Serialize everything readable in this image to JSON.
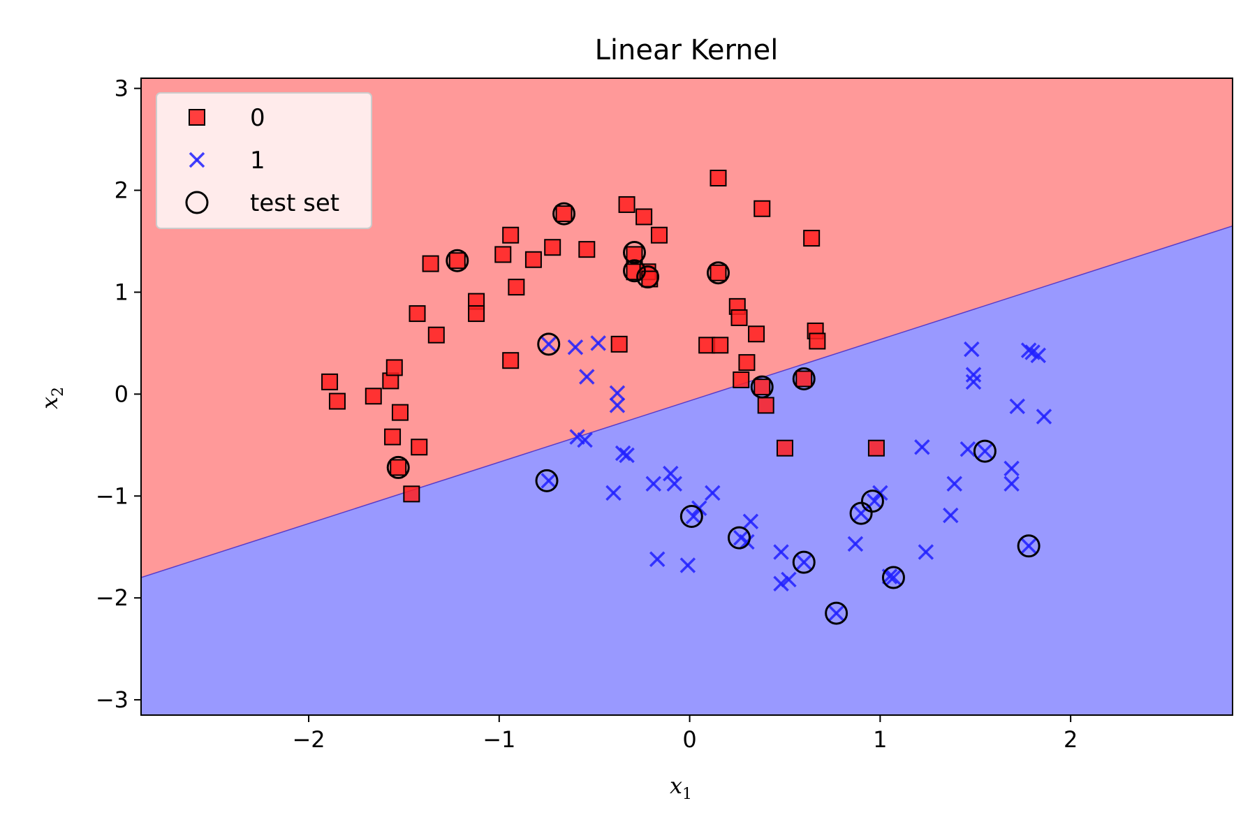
{
  "chart_data": {
    "type": "scatter",
    "title": "Linear Kernel",
    "xlabel": "x",
    "xlabel_sub": "1",
    "ylabel": "x",
    "ylabel_sub": "2",
    "xlim": [
      -2.88,
      2.85
    ],
    "ylim": [
      -3.15,
      3.1
    ],
    "xticks": [
      -2,
      -1,
      0,
      1,
      2
    ],
    "yticks": [
      -3,
      -2,
      -1,
      0,
      1,
      2,
      3
    ],
    "xtick_labels": [
      "−2",
      "−1",
      "0",
      "1",
      "2"
    ],
    "ytick_labels": [
      "−3",
      "−2",
      "−1",
      "0",
      "1",
      "2",
      "3"
    ],
    "grid": false,
    "legend_position": "top-left",
    "decision_boundary": {
      "x": [
        -2.88,
        2.85
      ],
      "y": [
        -1.8,
        1.65
      ]
    },
    "region_colors": {
      "class_0": "#ff9999",
      "class_1": "#9999ff"
    },
    "series": [
      {
        "name": "0",
        "marker": "square",
        "color": "#ff2020",
        "points": [
          [
            -1.89,
            0.12
          ],
          [
            -1.85,
            -0.07
          ],
          [
            -1.66,
            -0.02
          ],
          [
            -1.57,
            0.13
          ],
          [
            -1.55,
            0.26
          ],
          [
            -1.56,
            -0.42
          ],
          [
            -1.52,
            -0.18
          ],
          [
            -1.53,
            -0.72
          ],
          [
            -1.46,
            -0.98
          ],
          [
            -1.42,
            -0.52
          ],
          [
            -1.43,
            0.79
          ],
          [
            -1.36,
            1.28
          ],
          [
            -1.33,
            0.58
          ],
          [
            -1.22,
            1.31
          ],
          [
            -1.12,
            0.91
          ],
          [
            -1.12,
            0.79
          ],
          [
            -0.98,
            1.37
          ],
          [
            -0.94,
            1.56
          ],
          [
            -0.94,
            0.33
          ],
          [
            -0.91,
            1.05
          ],
          [
            -0.82,
            1.32
          ],
          [
            -0.72,
            1.44
          ],
          [
            -0.66,
            1.77
          ],
          [
            -0.54,
            1.42
          ],
          [
            -0.37,
            0.49
          ],
          [
            -0.33,
            1.86
          ],
          [
            -0.29,
            1.37
          ],
          [
            -0.29,
            1.2
          ],
          [
            -0.24,
            1.74
          ],
          [
            -0.22,
            1.2
          ],
          [
            -0.21,
            1.13
          ],
          [
            -0.16,
            1.56
          ],
          [
            0.09,
            0.48
          ],
          [
            0.15,
            2.12
          ],
          [
            0.16,
            0.48
          ],
          [
            0.15,
            1.19
          ],
          [
            0.25,
            0.86
          ],
          [
            0.26,
            0.75
          ],
          [
            0.27,
            0.14
          ],
          [
            0.3,
            0.31
          ],
          [
            0.35,
            0.59
          ],
          [
            0.38,
            0.07
          ],
          [
            0.4,
            -0.11
          ],
          [
            0.38,
            1.82
          ],
          [
            0.5,
            -0.53
          ],
          [
            0.6,
            0.15
          ],
          [
            0.64,
            1.53
          ],
          [
            0.66,
            0.62
          ],
          [
            0.67,
            0.52
          ],
          [
            0.98,
            -0.53
          ]
        ]
      },
      {
        "name": "1",
        "marker": "x",
        "color": "#2020ff",
        "points": [
          [
            -0.74,
            0.49
          ],
          [
            -0.6,
            0.46
          ],
          [
            -0.48,
            0.5
          ],
          [
            -0.54,
            0.17
          ],
          [
            -0.38,
            0.01
          ],
          [
            -0.38,
            -0.11
          ],
          [
            -0.59,
            -0.42
          ],
          [
            -0.55,
            -0.45
          ],
          [
            -0.35,
            -0.58
          ],
          [
            -0.33,
            -0.6
          ],
          [
            -0.74,
            -0.85
          ],
          [
            -0.4,
            -0.97
          ],
          [
            -0.19,
            -0.88
          ],
          [
            -0.1,
            -0.78
          ],
          [
            -0.08,
            -0.88
          ],
          [
            -0.17,
            -1.62
          ],
          [
            -0.01,
            -1.68
          ],
          [
            0.02,
            -1.2
          ],
          [
            0.05,
            -1.12
          ],
          [
            0.12,
            -0.97
          ],
          [
            0.27,
            -1.41
          ],
          [
            0.3,
            -1.45
          ],
          [
            0.32,
            -1.25
          ],
          [
            0.48,
            -1.55
          ],
          [
            0.48,
            -1.86
          ],
          [
            0.52,
            -1.82
          ],
          [
            0.6,
            -1.65
          ],
          [
            0.77,
            -2.15
          ],
          [
            0.87,
            -1.47
          ],
          [
            0.9,
            -1.17
          ],
          [
            0.97,
            -1.05
          ],
          [
            1.0,
            -0.97
          ],
          [
            1.05,
            -1.79
          ],
          [
            1.07,
            -1.8
          ],
          [
            1.22,
            -0.52
          ],
          [
            1.24,
            -1.55
          ],
          [
            1.37,
            -1.19
          ],
          [
            1.39,
            -0.88
          ],
          [
            1.46,
            -0.54
          ],
          [
            1.48,
            0.44
          ],
          [
            1.49,
            0.19
          ],
          [
            1.49,
            0.12
          ],
          [
            1.55,
            -0.56
          ],
          [
            1.69,
            -0.73
          ],
          [
            1.69,
            -0.88
          ],
          [
            1.72,
            -0.12
          ],
          [
            1.78,
            0.43
          ],
          [
            1.8,
            0.41
          ],
          [
            1.83,
            0.38
          ],
          [
            1.86,
            -0.22
          ],
          [
            1.78,
            -1.49
          ]
        ]
      },
      {
        "name": "test set",
        "marker": "circle-open",
        "color": "#000000",
        "points": [
          [
            -1.53,
            -0.72
          ],
          [
            -1.22,
            1.31
          ],
          [
            -0.66,
            1.77
          ],
          [
            -0.29,
            1.39
          ],
          [
            -0.29,
            1.21
          ],
          [
            -0.22,
            1.15
          ],
          [
            0.15,
            1.19
          ],
          [
            0.38,
            0.07
          ],
          [
            0.6,
            0.15
          ],
          [
            -0.74,
            0.49
          ],
          [
            -0.75,
            -0.85
          ],
          [
            0.01,
            -1.2
          ],
          [
            0.26,
            -1.41
          ],
          [
            0.6,
            -1.65
          ],
          [
            0.77,
            -2.15
          ],
          [
            0.9,
            -1.17
          ],
          [
            0.96,
            -1.05
          ],
          [
            1.07,
            -1.8
          ],
          [
            1.55,
            -0.56
          ],
          [
            1.78,
            -1.49
          ]
        ]
      }
    ]
  }
}
